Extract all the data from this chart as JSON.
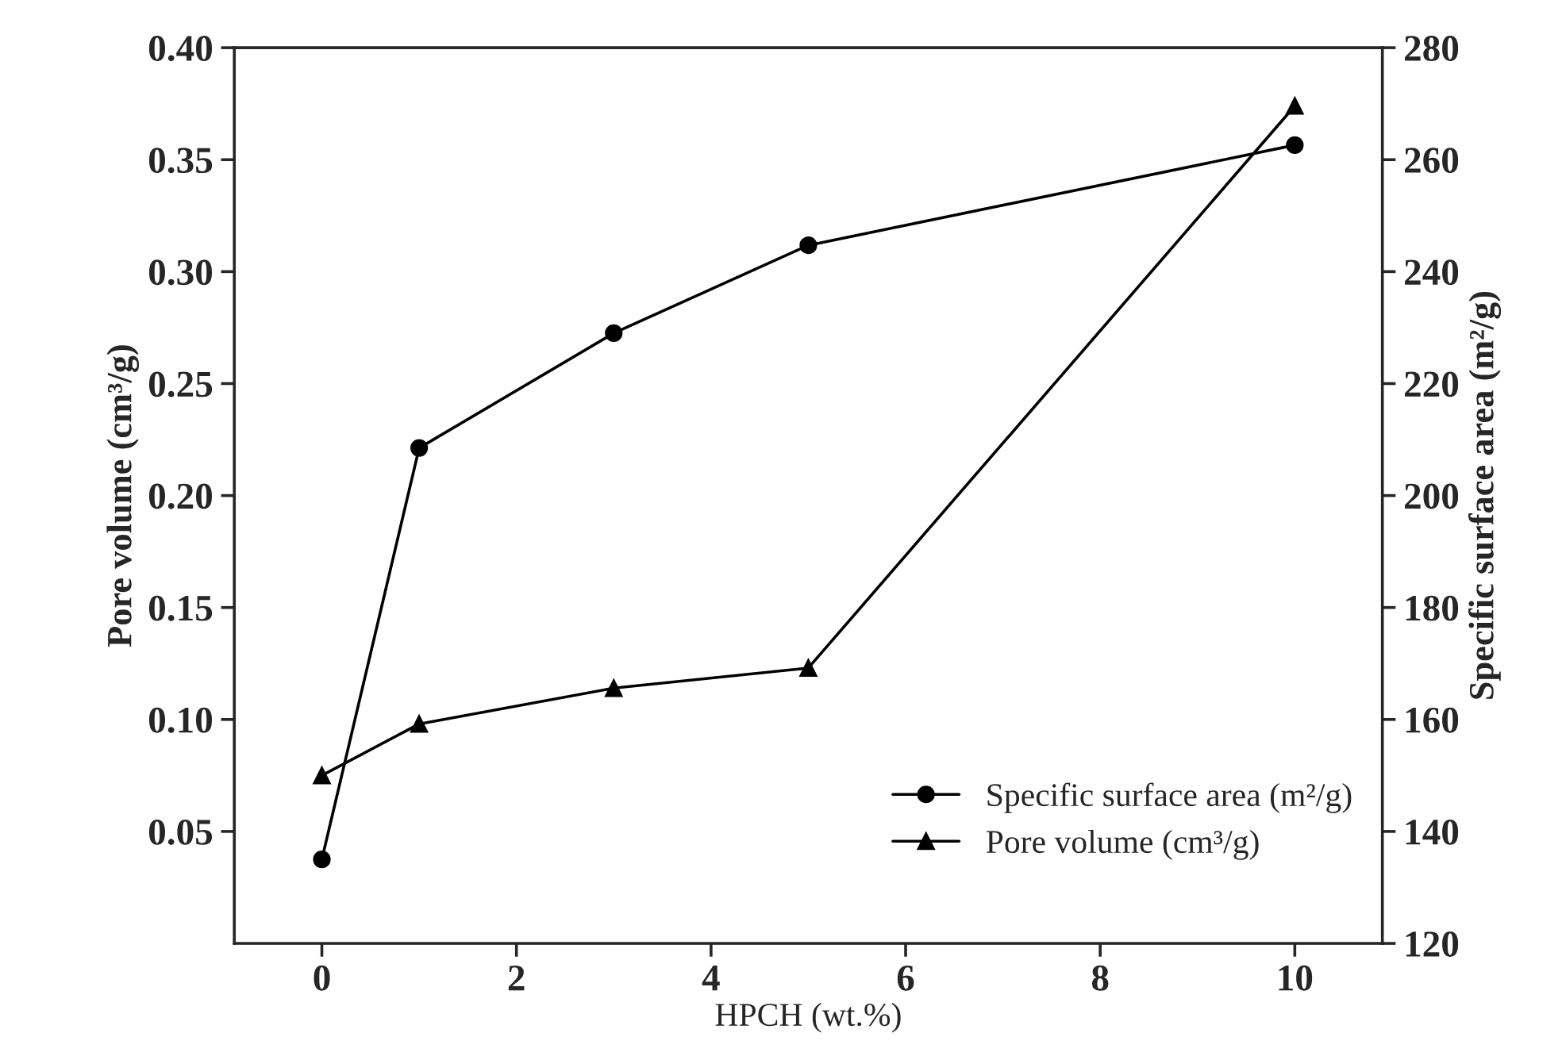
{
  "chart_data": {
    "type": "line",
    "xlabel": "HPCH (wt.%)",
    "ylabel": "Pore volume (cm³/g)",
    "y2label": "Specific surface area (m²/g)",
    "x": [
      0,
      1,
      3,
      5,
      10
    ],
    "series": [
      {
        "name": "Specific surface area (m²/g)",
        "color": "#000000",
        "axis": "y2",
        "marker": "circle",
        "values": [
          135,
          208.5,
          229,
          244.7,
          262.6
        ]
      },
      {
        "name": "Pore volume (cm³/g)",
        "color": "#000000",
        "marker": "triangle",
        "values": [
          0.075,
          0.098,
          0.114,
          0.123,
          0.374
        ]
      }
    ],
    "xlim": [
      -0.9,
      10.9
    ],
    "xticks": [
      0,
      2,
      4,
      6,
      8,
      10
    ],
    "ylim": [
      0,
      0.4
    ],
    "yticks": [
      {
        "value": 0.05,
        "label": "0.05"
      },
      {
        "value": 0.1,
        "label": "0.10"
      },
      {
        "value": 0.15,
        "label": "0.15"
      },
      {
        "value": 0.2,
        "label": "0.20"
      },
      {
        "value": 0.25,
        "label": "0.25"
      },
      {
        "value": 0.3,
        "label": "0.30"
      },
      {
        "value": 0.35,
        "label": "0.35"
      },
      {
        "value": 0.4,
        "label": "0.40"
      }
    ],
    "y2lim": [
      120,
      280
    ],
    "y2ticks": [
      120,
      140,
      160,
      180,
      200,
      220,
      240,
      260,
      280
    ],
    "legend": "bottom right",
    "grid": false,
    "line_style": "solid"
  }
}
